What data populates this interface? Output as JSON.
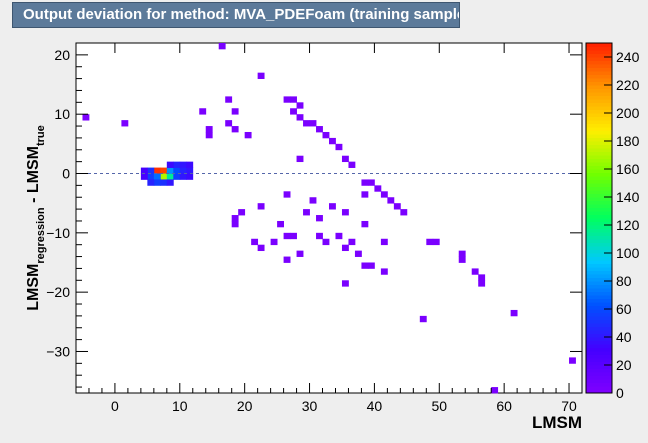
{
  "title": "Output deviation for method: MVA_PDEFoam (training sample)",
  "chart_data": {
    "type": "heatmap",
    "title": "Output deviation for method: MVA_PDEFoam (training sample)",
    "xlabel": "LMSM",
    "ylabel": {
      "base": "LMSM",
      "sub1": "regression",
      "mid": " - LMSM",
      "sub2": "true"
    },
    "xlim": [
      -6,
      72
    ],
    "ylim": [
      -37,
      22
    ],
    "x_ticks": [
      0,
      10,
      20,
      30,
      40,
      50,
      60,
      70
    ],
    "y_ticks": [
      -30,
      -20,
      -10,
      0,
      10,
      20
    ],
    "z_range": [
      0,
      250
    ],
    "z_ticks": [
      0,
      20,
      40,
      60,
      80,
      100,
      120,
      140,
      160,
      180,
      200,
      220,
      240
    ],
    "reference_line_y": 0,
    "cells": [
      {
        "x": 16.5,
        "y": 21.5,
        "z": 4
      },
      {
        "x": 22.5,
        "y": 16.5,
        "z": 3
      },
      {
        "x": -4.5,
        "y": 9.5,
        "z": 2
      },
      {
        "x": 1.5,
        "y": 8.5,
        "z": 3
      },
      {
        "x": 17.5,
        "y": 12.5,
        "z": 3
      },
      {
        "x": 26.5,
        "y": 12.5,
        "z": 3
      },
      {
        "x": 27.5,
        "y": 12.5,
        "z": 3
      },
      {
        "x": 28.5,
        "y": 11.5,
        "z": 3
      },
      {
        "x": 13.5,
        "y": 10.5,
        "z": 3
      },
      {
        "x": 18.5,
        "y": 10.5,
        "z": 3
      },
      {
        "x": 27.5,
        "y": 10.5,
        "z": 3
      },
      {
        "x": 28.5,
        "y": 9.5,
        "z": 3
      },
      {
        "x": 29.5,
        "y": 8.5,
        "z": 3
      },
      {
        "x": 30.5,
        "y": 8.5,
        "z": 3
      },
      {
        "x": 17.5,
        "y": 8.5,
        "z": 3
      },
      {
        "x": 14.5,
        "y": 7.5,
        "z": 3
      },
      {
        "x": 18.5,
        "y": 7.5,
        "z": 3
      },
      {
        "x": 31.5,
        "y": 7.5,
        "z": 3
      },
      {
        "x": 14.5,
        "y": 6.5,
        "z": 3
      },
      {
        "x": 20.5,
        "y": 6.5,
        "z": 3
      },
      {
        "x": 32.5,
        "y": 6.5,
        "z": 3
      },
      {
        "x": 33.5,
        "y": 5.5,
        "z": 3
      },
      {
        "x": 34.5,
        "y": 4.5,
        "z": 3
      },
      {
        "x": 35.5,
        "y": 2.5,
        "z": 3
      },
      {
        "x": 36.5,
        "y": 1.5,
        "z": 3
      },
      {
        "x": 28.5,
        "y": 2.5,
        "z": 3
      },
      {
        "x": 38.5,
        "y": -1.5,
        "z": 3
      },
      {
        "x": 39.5,
        "y": -1.5,
        "z": 3
      },
      {
        "x": 40.5,
        "y": -2.5,
        "z": 3
      },
      {
        "x": 41.5,
        "y": -3.5,
        "z": 3
      },
      {
        "x": 42.5,
        "y": -4.5,
        "z": 3
      },
      {
        "x": 43.5,
        "y": -5.5,
        "z": 3
      },
      {
        "x": 44.5,
        "y": -6.5,
        "z": 3
      },
      {
        "x": 38.5,
        "y": -3.5,
        "z": 3
      },
      {
        "x": 33.5,
        "y": -5.5,
        "z": 3
      },
      {
        "x": 35.5,
        "y": -6.5,
        "z": 3
      },
      {
        "x": 30.5,
        "y": -4.5,
        "z": 3
      },
      {
        "x": 29.5,
        "y": -6.5,
        "z": 3
      },
      {
        "x": 26.5,
        "y": -3.5,
        "z": 3
      },
      {
        "x": 22.5,
        "y": -5.5,
        "z": 3
      },
      {
        "x": 19.5,
        "y": -6.5,
        "z": 3
      },
      {
        "x": 18.5,
        "y": -7.5,
        "z": 3
      },
      {
        "x": 18.5,
        "y": -8.5,
        "z": 3
      },
      {
        "x": 25.5,
        "y": -8.5,
        "z": 3
      },
      {
        "x": 31.5,
        "y": -7.5,
        "z": 3
      },
      {
        "x": 31.5,
        "y": -10.5,
        "z": 3
      },
      {
        "x": 32.5,
        "y": -11.5,
        "z": 3
      },
      {
        "x": 34.5,
        "y": -10.5,
        "z": 3
      },
      {
        "x": 36.5,
        "y": -11.5,
        "z": 3
      },
      {
        "x": 38.5,
        "y": -8.5,
        "z": 3
      },
      {
        "x": 24.5,
        "y": -11.5,
        "z": 3
      },
      {
        "x": 26.5,
        "y": -10.5,
        "z": 3
      },
      {
        "x": 27.5,
        "y": -10.5,
        "z": 3
      },
      {
        "x": 21.5,
        "y": -11.5,
        "z": 3
      },
      {
        "x": 22.5,
        "y": -12.5,
        "z": 3
      },
      {
        "x": 35.5,
        "y": -12.5,
        "z": 3
      },
      {
        "x": 41.5,
        "y": -11.5,
        "z": 3
      },
      {
        "x": 48.5,
        "y": -11.5,
        "z": 3
      },
      {
        "x": 49.5,
        "y": -11.5,
        "z": 3
      },
      {
        "x": 26.5,
        "y": -14.5,
        "z": 3
      },
      {
        "x": 28.5,
        "y": -13.5,
        "z": 3
      },
      {
        "x": 37.5,
        "y": -13.5,
        "z": 3
      },
      {
        "x": 53.5,
        "y": -13.5,
        "z": 3
      },
      {
        "x": 53.5,
        "y": -14.5,
        "z": 3
      },
      {
        "x": 38.5,
        "y": -15.5,
        "z": 3
      },
      {
        "x": 39.5,
        "y": -15.5,
        "z": 3
      },
      {
        "x": 41.5,
        "y": -16.5,
        "z": 3
      },
      {
        "x": 55.5,
        "y": -16.5,
        "z": 3
      },
      {
        "x": 56.5,
        "y": -17.5,
        "z": 3
      },
      {
        "x": 56.5,
        "y": -18.5,
        "z": 3
      },
      {
        "x": 35.5,
        "y": -18.5,
        "z": 3
      },
      {
        "x": 61.5,
        "y": -23.5,
        "z": 3
      },
      {
        "x": 47.5,
        "y": -24.5,
        "z": 3
      },
      {
        "x": 70.5,
        "y": -31.5,
        "z": 3
      },
      {
        "x": 58.5,
        "y": -36.5,
        "z": 3
      },
      {
        "x": 6.5,
        "y": 0.5,
        "z": 245
      },
      {
        "x": 7.5,
        "y": 0.5,
        "z": 240
      },
      {
        "x": 7.5,
        "y": -0.5,
        "z": 170
      },
      {
        "x": 8.5,
        "y": -0.5,
        "z": 115
      },
      {
        "x": 8.5,
        "y": 0.5,
        "z": 80
      },
      {
        "x": 9.5,
        "y": 0.5,
        "z": 60
      },
      {
        "x": 5.5,
        "y": 0.5,
        "z": 50
      },
      {
        "x": 5.5,
        "y": -0.5,
        "z": 55
      },
      {
        "x": 6.5,
        "y": -0.5,
        "z": 70
      },
      {
        "x": 9.5,
        "y": -0.5,
        "z": 55
      },
      {
        "x": 10.5,
        "y": 0.5,
        "z": 45
      },
      {
        "x": 11.5,
        "y": 0.5,
        "z": 40
      },
      {
        "x": 10.5,
        "y": -0.5,
        "z": 40
      },
      {
        "x": 11.5,
        "y": -0.5,
        "z": 35
      },
      {
        "x": 6.5,
        "y": -1.5,
        "z": 55
      },
      {
        "x": 7.5,
        "y": -1.5,
        "z": 50
      },
      {
        "x": 8.5,
        "y": -1.5,
        "z": 40
      },
      {
        "x": 5.5,
        "y": -1.5,
        "z": 45
      },
      {
        "x": 9.5,
        "y": 1.5,
        "z": 45
      },
      {
        "x": 10.5,
        "y": 1.5,
        "z": 40
      },
      {
        "x": 11.5,
        "y": 1.5,
        "z": 35
      },
      {
        "x": 8.5,
        "y": 1.5,
        "z": 35
      },
      {
        "x": 4.5,
        "y": 0.5,
        "z": 30
      },
      {
        "x": 4.5,
        "y": -0.5,
        "z": 30
      }
    ]
  },
  "palette": [
    "#8000ff",
    "#4400ff",
    "#0050ff",
    "#00c8ff",
    "#00ff60",
    "#70ff00",
    "#ffee00",
    "#ff9600",
    "#ff1e00"
  ]
}
